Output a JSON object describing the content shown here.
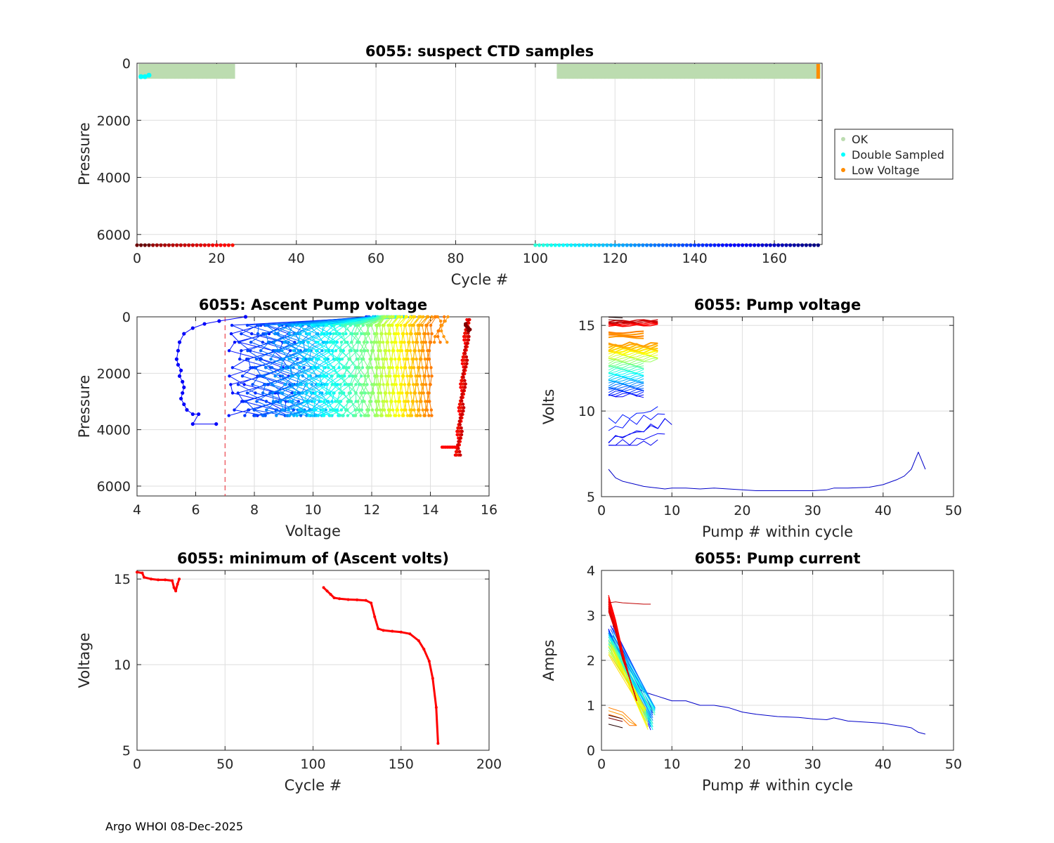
{
  "footer": "Argo WHOI 08-Dec-2025",
  "colors": {
    "ok": "#bcdcb0",
    "double": "#00ffff",
    "lowv": "#ff8c00",
    "trace": "#ff0000",
    "threshold": "#e8202a",
    "grid": "#dedede"
  },
  "chart_data": [
    {
      "id": "ctd",
      "type": "scatter",
      "title": "6055: suspect CTD samples",
      "xlabel": "Cycle #",
      "ylabel": "Pressure",
      "xlim": [
        0,
        172
      ],
      "ylim": [
        0,
        6350
      ],
      "y_reversed": true,
      "xticks": [
        0,
        20,
        40,
        60,
        80,
        100,
        120,
        140,
        160
      ],
      "yticks": [
        0,
        2000,
        4000,
        6000
      ],
      "legend": [
        "OK",
        "Double Sampled",
        "Low Voltage"
      ],
      "legend_location": "outside-right",
      "ok_cycles": [
        [
          1,
          24
        ],
        [
          106,
          171
        ]
      ],
      "ok_pressure_range": [
        0,
        520
      ],
      "double_sampled": [
        {
          "cycle": 1,
          "p": 470
        },
        {
          "cycle": 2,
          "p": 470
        },
        {
          "cycle": 3,
          "p": 420
        }
      ],
      "low_voltage": [
        {
          "cycle": 171,
          "p_range": [
            0,
            520
          ]
        }
      ],
      "cycle_marker_pressure": 6350,
      "cycle_markers": [
        [
          0,
          24
        ],
        [
          100,
          171
        ]
      ]
    },
    {
      "id": "ascent",
      "type": "line",
      "title": "6055: Ascent Pump voltage",
      "xlabel": "Voltage",
      "ylabel": "Pressure",
      "xlim": [
        4,
        16
      ],
      "ylim": [
        0,
        6350
      ],
      "y_reversed": true,
      "xticks": [
        4,
        6,
        8,
        10,
        12,
        14,
        16
      ],
      "yticks": [
        0,
        2000,
        4000,
        6000
      ],
      "threshold_voltage": 7,
      "first_profile": {
        "v": [
          7.7,
          6.8,
          6.3,
          5.9,
          5.6,
          5.45,
          5.4,
          5.35,
          5.4,
          5.5,
          5.45,
          5.55,
          5.6,
          5.55,
          5.5,
          5.6,
          5.7,
          5.9,
          6.1,
          5.9,
          6.7
        ],
        "p": [
          0,
          150,
          250,
          400,
          600,
          900,
          1200,
          1500,
          1700,
          1900,
          2100,
          2300,
          2500,
          2700,
          2900,
          3100,
          3300,
          3450,
          3450,
          3800,
          3800
        ]
      }
    },
    {
      "id": "pumpv",
      "type": "line",
      "title": "6055: Pump voltage",
      "xlabel": "Pump # within cycle",
      "ylabel": "Volts",
      "xlim": [
        0,
        50
      ],
      "ylim": [
        5,
        15.5
      ],
      "xticks": [
        0,
        10,
        20,
        30,
        40,
        50
      ],
      "yticks": [
        5,
        10,
        15
      ],
      "long_cycle": {
        "pump": [
          1,
          2,
          3,
          4,
          5,
          6,
          7,
          8,
          9,
          10,
          12,
          14,
          16,
          18,
          20,
          22,
          24,
          26,
          28,
          30,
          32,
          33,
          35,
          38,
          40,
          42,
          43,
          44,
          45,
          46
        ],
        "volts": [
          6.6,
          6.1,
          5.9,
          5.8,
          5.7,
          5.6,
          5.55,
          5.5,
          5.45,
          5.5,
          5.5,
          5.45,
          5.5,
          5.45,
          5.4,
          5.35,
          5.35,
          5.35,
          5.35,
          5.35,
          5.4,
          5.5,
          5.5,
          5.55,
          5.7,
          6.0,
          6.2,
          6.6,
          7.6,
          6.6
        ]
      }
    },
    {
      "id": "minv",
      "type": "line",
      "title": "6055: minimum of (Ascent volts)",
      "xlabel": "Cycle #",
      "ylabel": "Voltage",
      "xlim": [
        0,
        200
      ],
      "ylim": [
        5,
        15.5
      ],
      "xticks": [
        0,
        50,
        100,
        150,
        200
      ],
      "yticks": [
        5,
        10,
        15
      ],
      "segments": [
        {
          "x": [
            0,
            3,
            4,
            8,
            12,
            16,
            20,
            21,
            22,
            23,
            24
          ],
          "y": [
            15.4,
            15.35,
            15.1,
            15.0,
            14.95,
            14.95,
            14.9,
            14.5,
            14.3,
            14.7,
            15.0
          ]
        },
        {
          "x": [
            106,
            108,
            110,
            112,
            115,
            120,
            125,
            130,
            133,
            135,
            137,
            140,
            145,
            150,
            155,
            160,
            163,
            166,
            168,
            170,
            171
          ],
          "y": [
            14.5,
            14.3,
            14.1,
            13.9,
            13.85,
            13.8,
            13.78,
            13.75,
            13.6,
            12.8,
            12.1,
            12.0,
            11.95,
            11.9,
            11.8,
            11.4,
            10.9,
            10.2,
            9.2,
            7.5,
            5.4
          ]
        }
      ]
    },
    {
      "id": "pumpc",
      "type": "line",
      "title": "6055: Pump current",
      "xlabel": "Pump # within cycle",
      "ylabel": "Amps",
      "xlim": [
        0,
        50
      ],
      "ylim": [
        0,
        4
      ],
      "xticks": [
        0,
        10,
        20,
        30,
        40,
        50
      ],
      "yticks": [
        0,
        1,
        2,
        3,
        4
      ],
      "long_cycle": {
        "pump": [
          1,
          2,
          3,
          4,
          5,
          6,
          7,
          8,
          9,
          10,
          12,
          14,
          16,
          18,
          20,
          22,
          25,
          28,
          30,
          32,
          33,
          35,
          38,
          40,
          42,
          43,
          44,
          45,
          46
        ],
        "amps": [
          2.6,
          2.4,
          2.1,
          1.7,
          1.4,
          1.3,
          1.25,
          1.2,
          1.15,
          1.1,
          1.1,
          1.0,
          1.0,
          0.95,
          0.85,
          0.8,
          0.75,
          0.73,
          0.7,
          0.68,
          0.72,
          0.65,
          0.62,
          0.6,
          0.55,
          0.53,
          0.5,
          0.4,
          0.36
        ]
      }
    }
  ]
}
